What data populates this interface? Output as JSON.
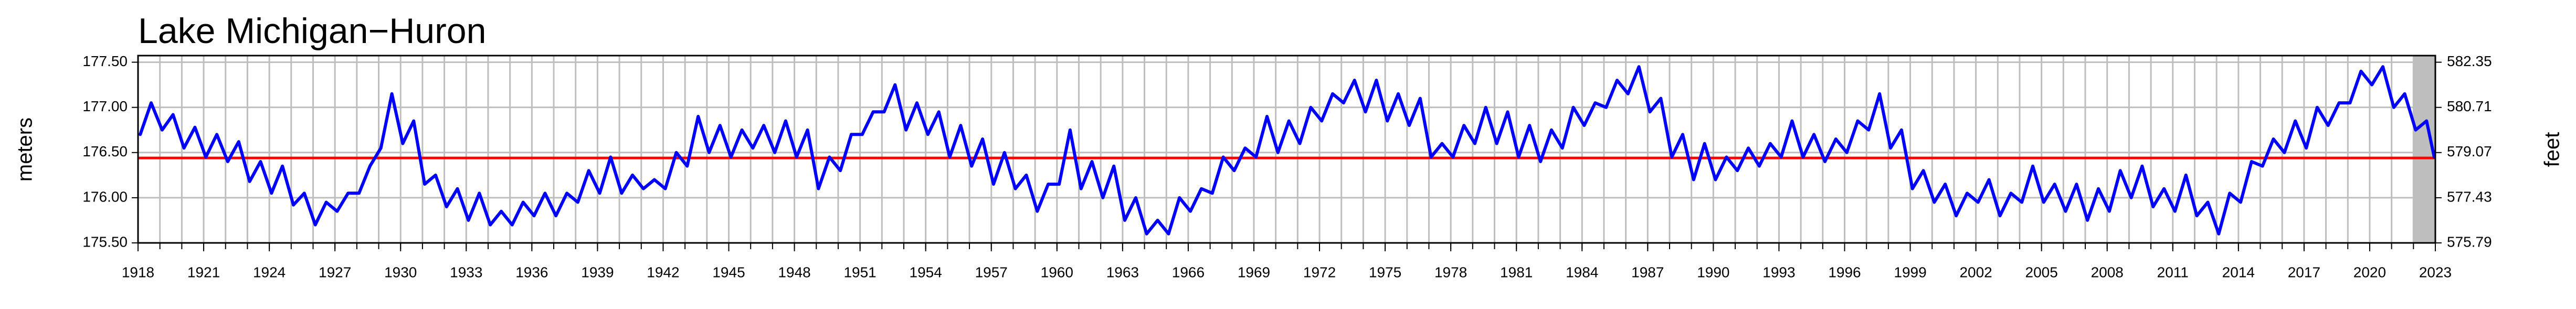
{
  "chart_data": {
    "type": "line",
    "title": "Lake Michigan−Huron",
    "ylabel": "meters",
    "y2label": "feet",
    "xlim": [
      1918,
      2023
    ],
    "xticks": [
      1918,
      1921,
      1924,
      1927,
      1930,
      1933,
      1936,
      1939,
      1942,
      1945,
      1948,
      1951,
      1954,
      1957,
      1960,
      1963,
      1966,
      1969,
      1972,
      1975,
      1978,
      1981,
      1984,
      1987,
      1990,
      1993,
      1996,
      1999,
      2002,
      2005,
      2008,
      2011,
      2014,
      2017,
      2020,
      2023
    ],
    "x_grid_step": 1,
    "ylim": [
      175.5,
      177.573
    ],
    "yticks": [
      {
        "value": 175.5,
        "label": "175.50"
      },
      {
        "value": 176,
        "label": "176.00"
      },
      {
        "value": 176.5,
        "label": "176.50"
      },
      {
        "value": 177,
        "label": "177.00"
      },
      {
        "value": 177.5,
        "label": "177.50"
      }
    ],
    "y2lim": [
      575.79,
      582.59
    ],
    "y2ticks": [
      575.79,
      577.43,
      579.07,
      580.71,
      582.35
    ],
    "grid": true,
    "mean_level": 176.44,
    "mean_color": "#ff0000",
    "shade_x": [
      2022,
      2023
    ],
    "shade_color": "#bebebe",
    "x": [
      1918.1,
      1918.6,
      1919.1,
      1919.6,
      1920.1,
      1920.6,
      1921.1,
      1921.6,
      1922.1,
      1922.6,
      1923.1,
      1923.6,
      1924.1,
      1924.6,
      1925.1,
      1925.6,
      1926.1,
      1926.6,
      1927.1,
      1927.6,
      1928.1,
      1928.6,
      1929.1,
      1929.6,
      1930.1,
      1930.6,
      1931.1,
      1931.6,
      1932.1,
      1932.6,
      1933.1,
      1933.6,
      1934.1,
      1934.6,
      1935.1,
      1935.6,
      1936.1,
      1936.6,
      1937.1,
      1937.6,
      1938.1,
      1938.6,
      1939.1,
      1939.6,
      1940.1,
      1940.6,
      1941.1,
      1941.6,
      1942.1,
      1942.6,
      1943.1,
      1943.6,
      1944.1,
      1944.6,
      1945.1,
      1945.6,
      1946.1,
      1946.6,
      1947.1,
      1947.6,
      1948.1,
      1948.6,
      1949.1,
      1949.6,
      1950.1,
      1950.6,
      1951.1,
      1951.6,
      1952.1,
      1952.6,
      1953.1,
      1953.6,
      1954.1,
      1954.6,
      1955.1,
      1955.6,
      1956.1,
      1956.6,
      1957.1,
      1957.6,
      1958.1,
      1958.6,
      1959.1,
      1959.6,
      1960.1,
      1960.6,
      1961.1,
      1961.6,
      1962.1,
      1962.6,
      1963.1,
      1963.6,
      1964.1,
      1964.6,
      1965.1,
      1965.6,
      1966.1,
      1966.6,
      1967.1,
      1967.6,
      1968.1,
      1968.6,
      1969.1,
      1969.6,
      1970.1,
      1970.6,
      1971.1,
      1971.6,
      1972.1,
      1972.6,
      1973.1,
      1973.6,
      1974.1,
      1974.6,
      1975.1,
      1975.6,
      1976.1,
      1976.6,
      1977.1,
      1977.6,
      1978.1,
      1978.6,
      1979.1,
      1979.6,
      1980.1,
      1980.6,
      1981.1,
      1981.6,
      1982.1,
      1982.6,
      1983.1,
      1983.6,
      1984.1,
      1984.6,
      1985.1,
      1985.6,
      1986.1,
      1986.6,
      1987.1,
      1987.6,
      1988.1,
      1988.6,
      1989.1,
      1989.6,
      1990.1,
      1990.6,
      1991.1,
      1991.6,
      1992.1,
      1992.6,
      1993.1,
      1993.6,
      1994.1,
      1994.6,
      1995.1,
      1995.6,
      1996.1,
      1996.6,
      1997.1,
      1997.6,
      1998.1,
      1998.6,
      1999.1,
      1999.6,
      2000.1,
      2000.6,
      2001.1,
      2001.6,
      2002.1,
      2002.6,
      2003.1,
      2003.6,
      2004.1,
      2004.6,
      2005.1,
      2005.6,
      2006.1,
      2006.6,
      2007.1,
      2007.6,
      2008.1,
      2008.6,
      2009.1,
      2009.6,
      2010.1,
      2010.6,
      2011.1,
      2011.6,
      2012.1,
      2012.6,
      2013.1,
      2013.6,
      2014.1,
      2014.6,
      2015.1,
      2015.6,
      2016.1,
      2016.6,
      2017.1,
      2017.6,
      2018.1,
      2018.6,
      2019.1,
      2019.6,
      2020.1,
      2020.6,
      2021.1,
      2021.6,
      2022.1,
      2022.6,
      2022.95
    ],
    "series": [
      {
        "color": "#0000ff",
        "values": [
          176.7,
          177.05,
          176.75,
          176.92,
          176.55,
          176.78,
          176.45,
          176.7,
          176.4,
          176.62,
          176.18,
          176.4,
          176.05,
          176.35,
          175.92,
          176.05,
          175.7,
          175.95,
          175.85,
          176.05,
          176.05,
          176.35,
          176.55,
          177.15,
          176.6,
          176.85,
          176.15,
          176.25,
          175.9,
          176.1,
          175.75,
          176.05,
          175.7,
          175.85,
          175.7,
          175.95,
          175.8,
          176.05,
          175.8,
          176.05,
          175.95,
          176.3,
          176.05,
          176.45,
          176.05,
          176.25,
          176.1,
          176.2,
          176.1,
          176.5,
          176.35,
          176.9,
          176.5,
          176.8,
          176.45,
          176.75,
          176.55,
          176.8,
          176.5,
          176.85,
          176.45,
          176.75,
          176.1,
          176.45,
          176.3,
          176.7,
          176.7,
          176.95,
          176.95,
          177.25,
          176.75,
          177.05,
          176.7,
          176.95,
          176.45,
          176.8,
          176.35,
          176.65,
          176.15,
          176.5,
          176.1,
          176.25,
          175.85,
          176.15,
          176.15,
          176.75,
          176.1,
          176.4,
          176.0,
          176.35,
          175.75,
          176.0,
          175.6,
          175.75,
          175.6,
          176.0,
          175.85,
          176.1,
          176.05,
          176.45,
          176.3,
          176.55,
          176.45,
          176.9,
          176.5,
          176.85,
          176.6,
          177.0,
          176.85,
          177.15,
          177.05,
          177.3,
          176.95,
          177.3,
          176.85,
          177.15,
          176.8,
          177.1,
          176.45,
          176.6,
          176.45,
          176.8,
          176.6,
          177.0,
          176.6,
          176.95,
          176.45,
          176.8,
          176.4,
          176.75,
          176.55,
          177.0,
          176.8,
          177.05,
          177.0,
          177.3,
          177.15,
          177.45,
          176.95,
          177.1,
          176.45,
          176.7,
          176.2,
          176.6,
          176.2,
          176.45,
          176.3,
          176.55,
          176.35,
          176.6,
          176.45,
          176.85,
          176.45,
          176.7,
          176.4,
          176.65,
          176.5,
          176.85,
          176.75,
          177.15,
          176.55,
          176.75,
          176.1,
          176.3,
          175.95,
          176.15,
          175.8,
          176.05,
          175.95,
          176.2,
          175.8,
          176.05,
          175.95,
          176.35,
          175.95,
          176.15,
          175.85,
          176.15,
          175.75,
          176.1,
          175.85,
          176.3,
          176.0,
          176.35,
          175.9,
          176.1,
          175.85,
          176.25,
          175.8,
          175.95,
          175.6,
          176.05,
          175.95,
          176.4,
          176.35,
          176.65,
          176.5,
          176.85,
          176.55,
          177.0,
          176.8,
          177.05,
          177.05,
          177.4,
          177.25,
          177.45,
          177.0,
          177.15,
          176.75,
          176.85,
          176.45
        ]
      }
    ]
  }
}
